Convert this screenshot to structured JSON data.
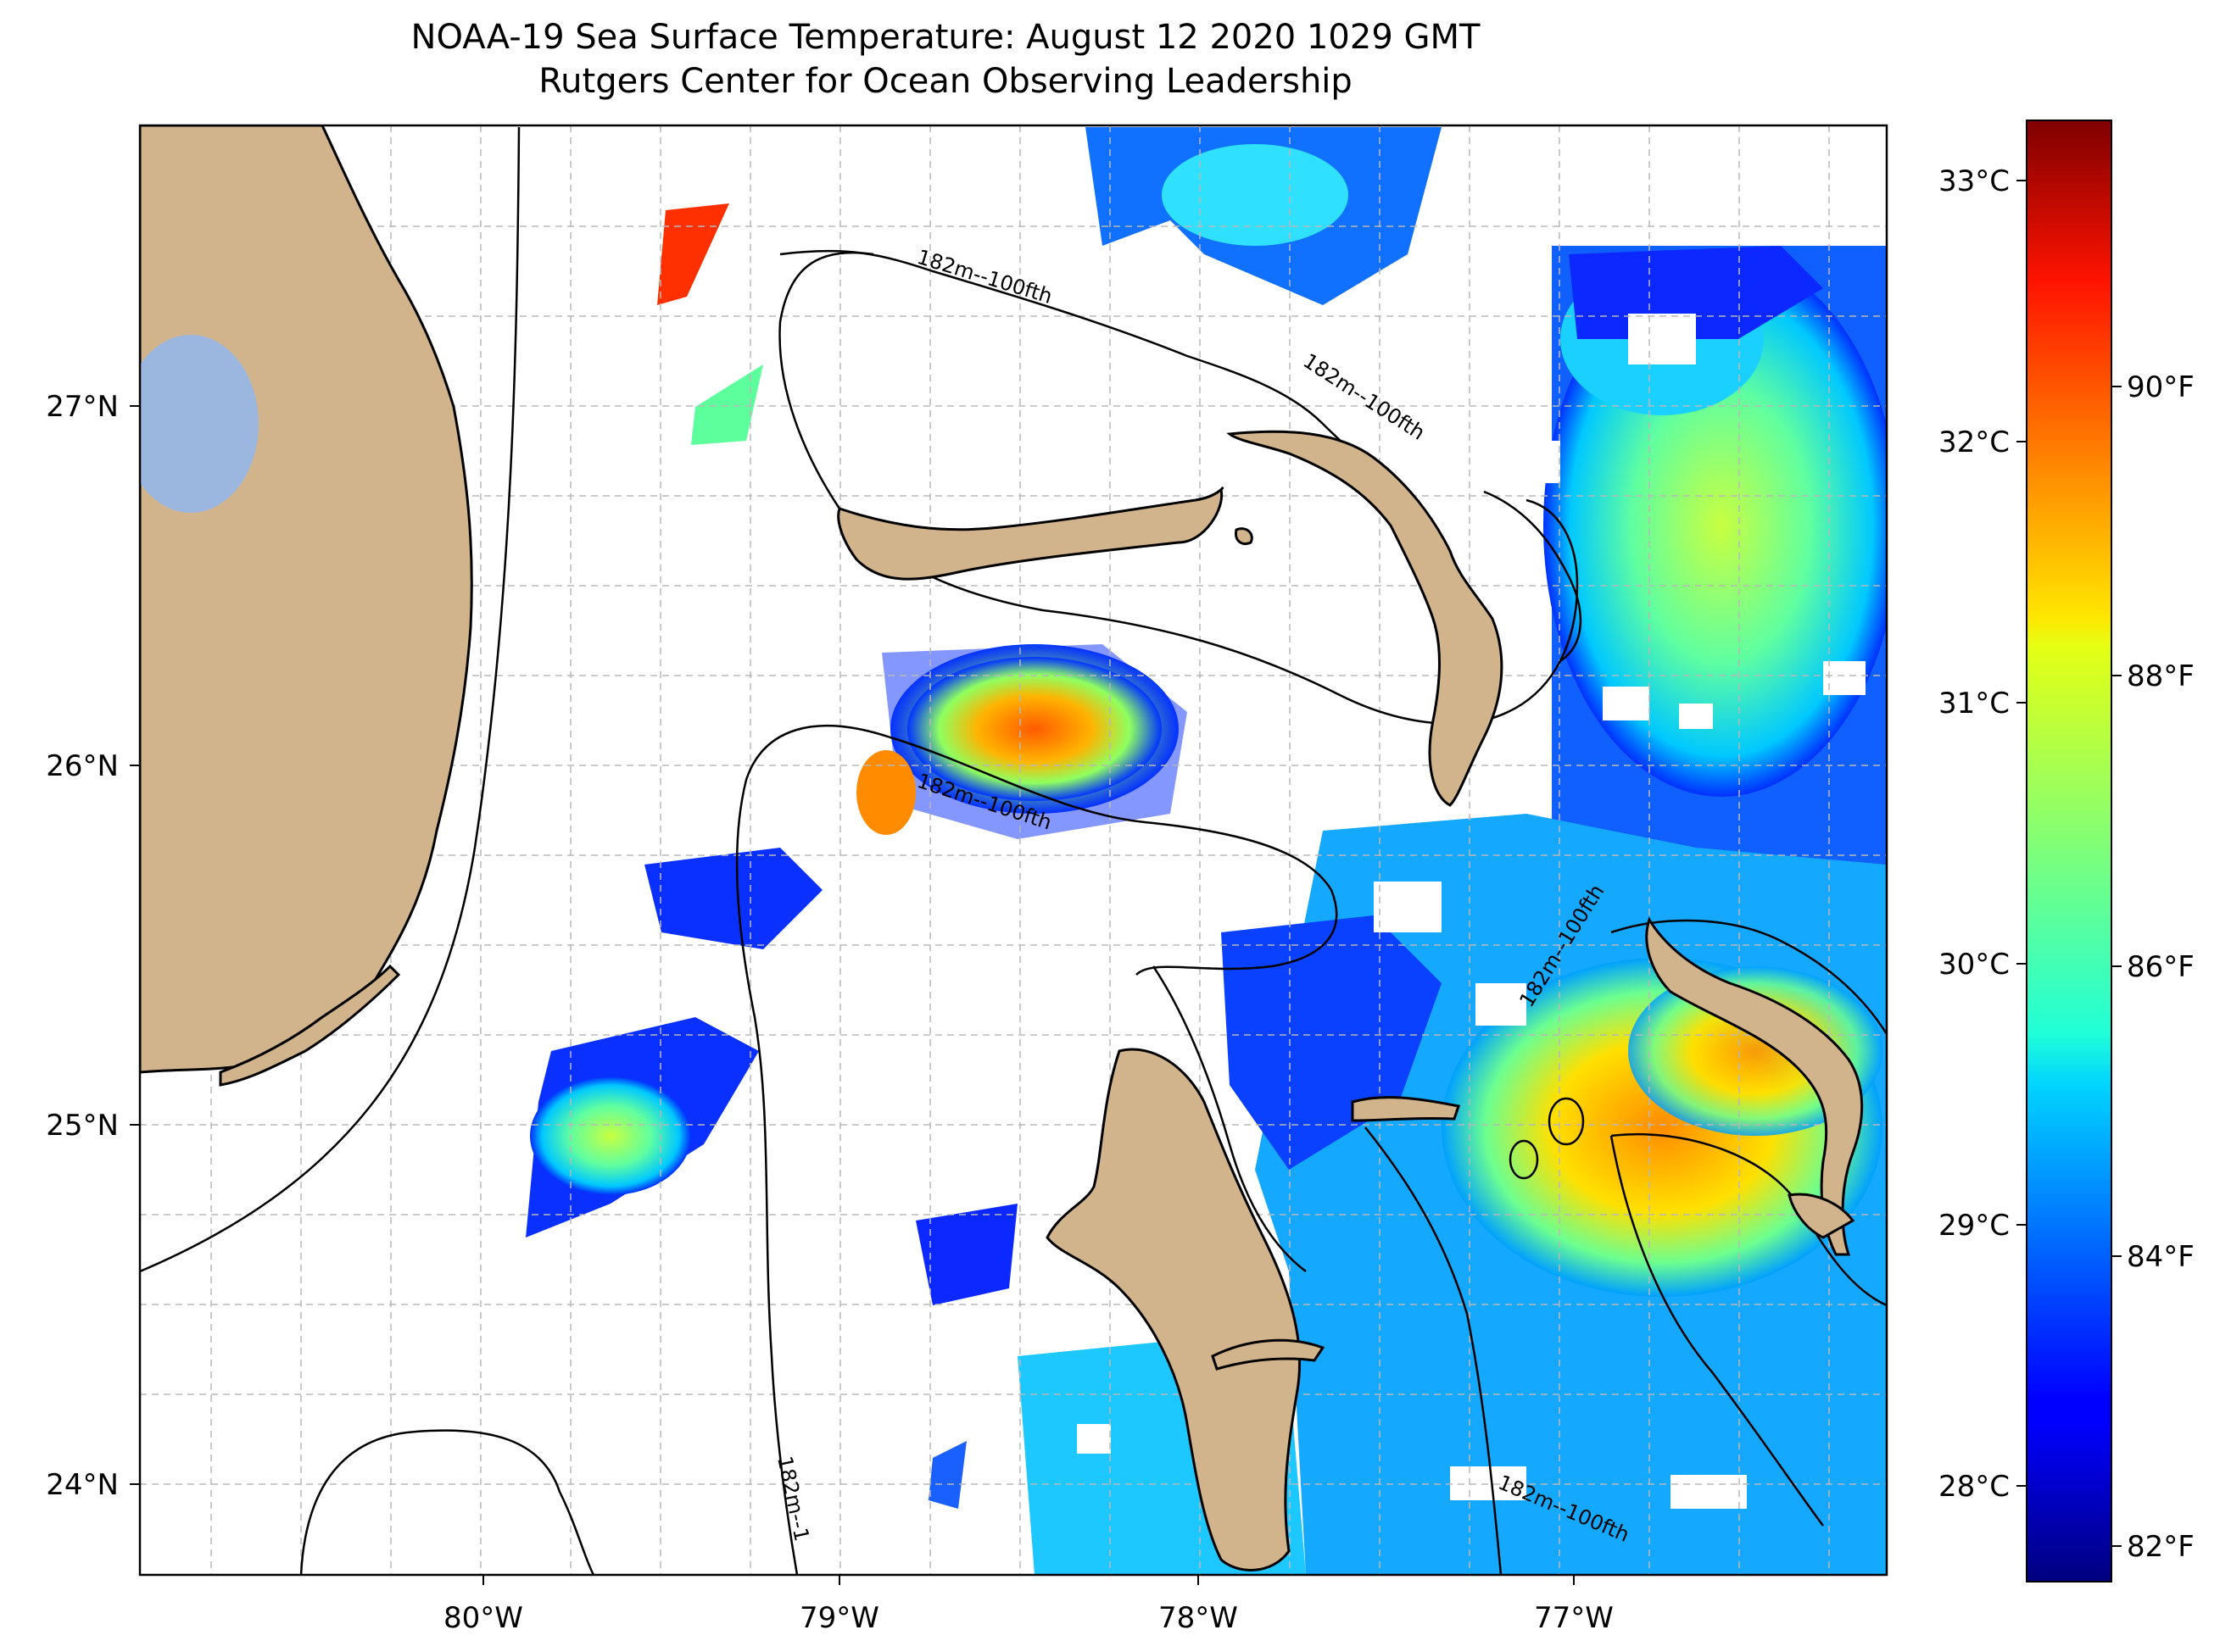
{
  "title": {
    "line1": "NOAA-19 Sea Surface Temperature: August 12 2020 1029 GMT",
    "line2": "Rutgers Center for Ocean Observing Leadership"
  },
  "map": {
    "lon_ticks": [
      "80°W",
      "79°W",
      "78°W",
      "77°W"
    ],
    "lat_ticks": [
      "27°N",
      "26°N",
      "25°N",
      "24°N"
    ],
    "contour_label": "182m--100fth",
    "contour_label_truncated": "182m--1",
    "colors": {
      "land": "#d2b48c",
      "lake": "#9bb7e0",
      "grid": "#b8b8b8"
    }
  },
  "colorbar": {
    "celsius_ticks": [
      "33°C",
      "32°C",
      "31°C",
      "30°C",
      "29°C",
      "28°C"
    ],
    "fahrenheit_ticks": [
      "90°F",
      "88°F",
      "86°F",
      "84°F",
      "82°F"
    ],
    "colormap": "jet"
  }
}
